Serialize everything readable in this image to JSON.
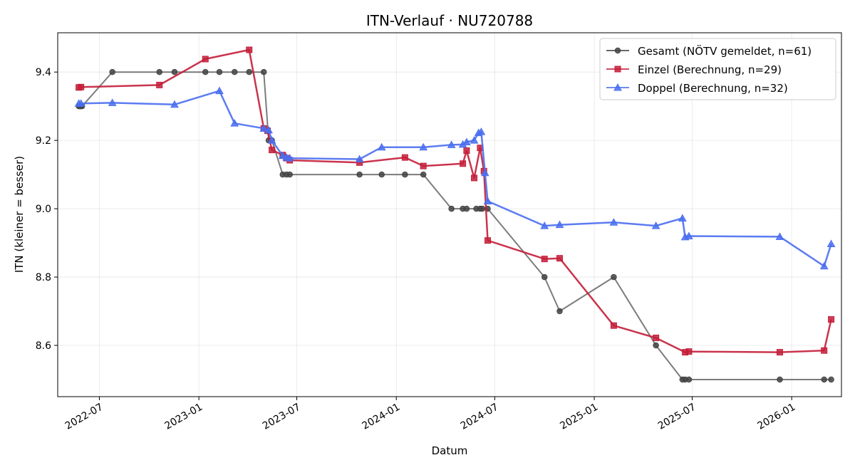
{
  "chart_data": {
    "type": "line",
    "title": "ITN-Verlauf · NU720788",
    "xlabel": "Datum",
    "ylabel": "ITN  (kleiner = besser)",
    "x_type": "date",
    "xlim": [
      "2022-04-15",
      "2026-04-03"
    ],
    "ylim": [
      8.45,
      9.515
    ],
    "x_ticks": [
      "2022-07-01",
      "2023-01-01",
      "2023-07-01",
      "2024-01-01",
      "2024-07-01",
      "2025-01-01",
      "2025-07-01",
      "2026-01-01"
    ],
    "x_tick_labels": [
      "2022-07",
      "2023-01",
      "2023-07",
      "2024-01",
      "2024-07",
      "2025-01",
      "2025-07",
      "2026-01"
    ],
    "y_ticks": [
      8.6,
      8.8,
      9.0,
      9.2,
      9.4
    ],
    "y_tick_labels": [
      "8.6",
      "8.8",
      "9.0",
      "9.2",
      "9.4"
    ],
    "grid": true,
    "legend_position": "top-right",
    "series": [
      {
        "name": "Gesamt (NÖTV gemeldet, n=61)",
        "color": "#444444",
        "marker": "circle",
        "points": [
          [
            "2022-05-24",
            9.3
          ],
          [
            "2022-05-26",
            9.3
          ],
          [
            "2022-05-28",
            9.3
          ],
          [
            "2022-05-30",
            9.3
          ],
          [
            "2022-07-25",
            9.4
          ],
          [
            "2022-10-20",
            9.4
          ],
          [
            "2022-11-17",
            9.4
          ],
          [
            "2023-01-13",
            9.4
          ],
          [
            "2023-02-08",
            9.4
          ],
          [
            "2023-03-08",
            9.4
          ],
          [
            "2023-04-04",
            9.4
          ],
          [
            "2023-05-01",
            9.4
          ],
          [
            "2023-05-10",
            9.2
          ],
          [
            "2023-05-16",
            9.2
          ],
          [
            "2023-06-05",
            9.1
          ],
          [
            "2023-06-12",
            9.1
          ],
          [
            "2023-06-18",
            9.1
          ],
          [
            "2023-10-25",
            9.1
          ],
          [
            "2023-12-05",
            9.1
          ],
          [
            "2024-01-17",
            9.1
          ],
          [
            "2024-02-20",
            9.1
          ],
          [
            "2024-04-12",
            9.0
          ],
          [
            "2024-05-03",
            9.0
          ],
          [
            "2024-05-10",
            9.0
          ],
          [
            "2024-05-28",
            9.0
          ],
          [
            "2024-06-04",
            9.0
          ],
          [
            "2024-06-08",
            9.0
          ],
          [
            "2024-06-18",
            9.0
          ],
          [
            "2024-10-01",
            8.8
          ],
          [
            "2024-10-29",
            8.7
          ],
          [
            "2025-02-06",
            8.8
          ],
          [
            "2025-04-25",
            8.6
          ],
          [
            "2025-06-13",
            8.5
          ],
          [
            "2025-06-18",
            8.5
          ],
          [
            "2025-06-25",
            8.5
          ],
          [
            "2025-12-10",
            8.5
          ],
          [
            "2026-03-02",
            8.5
          ],
          [
            "2026-03-15",
            8.5
          ]
        ]
      },
      {
        "name": "Einzel (Berechnung, n=29)",
        "color": "#c41e3a",
        "marker": "square",
        "points": [
          [
            "2022-05-24",
            9.355
          ],
          [
            "2022-05-28",
            9.356
          ],
          [
            "2022-10-20",
            9.362
          ],
          [
            "2023-01-13",
            9.438
          ],
          [
            "2023-04-04",
            9.465
          ],
          [
            "2023-05-01",
            9.235
          ],
          [
            "2023-05-08",
            9.228
          ],
          [
            "2023-05-16",
            9.172
          ],
          [
            "2023-06-05",
            9.157
          ],
          [
            "2023-06-12",
            9.148
          ],
          [
            "2023-06-18",
            9.142
          ],
          [
            "2023-10-25",
            9.135
          ],
          [
            "2024-01-17",
            9.15
          ],
          [
            "2024-02-20",
            9.125
          ],
          [
            "2024-05-03",
            9.132
          ],
          [
            "2024-05-10",
            9.17
          ],
          [
            "2024-05-24",
            9.09
          ],
          [
            "2024-06-04",
            9.178
          ],
          [
            "2024-06-11",
            9.11
          ],
          [
            "2024-06-18",
            8.907
          ],
          [
            "2024-10-01",
            8.853
          ],
          [
            "2024-10-29",
            8.855
          ],
          [
            "2025-02-06",
            8.658
          ],
          [
            "2025-04-25",
            8.622
          ],
          [
            "2025-06-18",
            8.58
          ],
          [
            "2025-06-25",
            8.582
          ],
          [
            "2025-12-10",
            8.58
          ],
          [
            "2026-03-02",
            8.585
          ],
          [
            "2026-03-15",
            8.676
          ]
        ]
      },
      {
        "name": "Doppel (Berechnung, n=32)",
        "color": "#4a6ef0",
        "marker": "triangle",
        "points": [
          [
            "2022-05-24",
            9.308
          ],
          [
            "2022-05-28",
            9.308
          ],
          [
            "2022-07-25",
            9.31
          ],
          [
            "2022-11-17",
            9.305
          ],
          [
            "2023-02-08",
            9.345
          ],
          [
            "2023-03-08",
            9.25
          ],
          [
            "2023-05-01",
            9.235
          ],
          [
            "2023-05-10",
            9.23
          ],
          [
            "2023-05-16",
            9.2
          ],
          [
            "2023-06-05",
            9.155
          ],
          [
            "2023-06-12",
            9.15
          ],
          [
            "2023-06-18",
            9.148
          ],
          [
            "2023-10-25",
            9.145
          ],
          [
            "2023-12-05",
            9.18
          ],
          [
            "2024-02-20",
            9.18
          ],
          [
            "2024-04-12",
            9.187
          ],
          [
            "2024-05-03",
            9.188
          ],
          [
            "2024-05-10",
            9.195
          ],
          [
            "2024-05-24",
            9.2
          ],
          [
            "2024-06-01",
            9.222
          ],
          [
            "2024-06-06",
            9.225
          ],
          [
            "2024-06-13",
            9.105
          ],
          [
            "2024-06-18",
            9.022
          ],
          [
            "2024-10-01",
            8.95
          ],
          [
            "2024-10-29",
            8.953
          ],
          [
            "2025-02-06",
            8.96
          ],
          [
            "2025-04-25",
            8.95
          ],
          [
            "2025-06-13",
            8.972
          ],
          [
            "2025-06-18",
            8.917
          ],
          [
            "2025-06-25",
            8.92
          ],
          [
            "2025-12-10",
            8.918
          ],
          [
            "2026-03-02",
            8.832
          ],
          [
            "2026-03-15",
            8.897
          ]
        ]
      }
    ]
  }
}
